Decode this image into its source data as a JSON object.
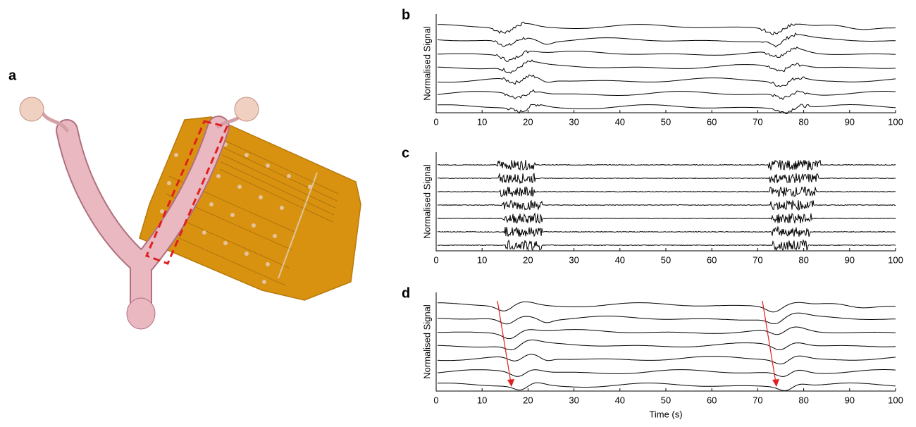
{
  "figure": {
    "panel_a_label": "a",
    "plots": [
      {
        "label": "b",
        "y_label": "Normalised Signal",
        "xlim": [
          0,
          100
        ],
        "xticks": [
          0,
          10,
          20,
          30,
          40,
          50,
          60,
          70,
          80,
          90,
          100
        ]
      },
      {
        "label": "c",
        "y_label": "Normalised Signal",
        "xlim": [
          0,
          100
        ],
        "xticks": [
          0,
          10,
          20,
          30,
          40,
          50,
          60,
          70,
          80,
          90,
          100
        ]
      },
      {
        "label": "d",
        "y_label": "Normalised Signal",
        "xlim": [
          0,
          100
        ],
        "xticks": [
          0,
          10,
          20,
          30,
          40,
          50,
          60,
          70,
          80,
          90,
          100
        ],
        "x_label": "Time (s)"
      }
    ]
  }
}
